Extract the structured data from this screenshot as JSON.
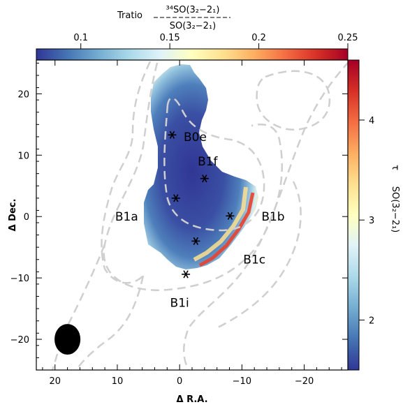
{
  "chart_data": {
    "type": "heatmap",
    "title": "",
    "top_colorbar": {
      "label": "Tratio",
      "ratio_numerator": "³⁴SO(3₂−2₁)",
      "ratio_denominator": "SO(3₂−2₁)",
      "range": [
        0.075,
        0.25
      ],
      "ticks": [
        0.1,
        0.15,
        0.2,
        0.25
      ],
      "tick_labels": [
        "0.1",
        "0.15",
        "0.2",
        "0.25"
      ]
    },
    "right_colorbar": {
      "symbol": "τ",
      "label": "SO(3₂−2₁)",
      "range": [
        1.5,
        4.6
      ],
      "ticks": [
        2,
        3,
        4
      ],
      "tick_labels": [
        "2",
        "3",
        "4"
      ]
    },
    "colormap": [
      "#313695",
      "#4575b4",
      "#74add1",
      "#abd9e9",
      "#e0f3f8",
      "#ffffbf",
      "#fee090",
      "#fdae61",
      "#f46d43",
      "#d73027",
      "#a50026"
    ],
    "xlabel": "Δ R.A.",
    "ylabel": "Δ Dec.",
    "xlim": [
      23,
      -27
    ],
    "ylim": [
      -25,
      25.5
    ],
    "xticks": [
      20,
      10,
      0,
      -10,
      -20
    ],
    "xtick_labels": [
      "20",
      "10",
      "0",
      "−10",
      "−20"
    ],
    "yticks": [
      20,
      10,
      0,
      -10,
      -20
    ],
    "ytick_labels": [
      "20",
      "10",
      "0",
      "−10",
      "−20"
    ],
    "sources": [
      {
        "name": "B0e",
        "x": 1.2,
        "y": 13.3,
        "label_x": -2.5,
        "label_y": 13
      },
      {
        "name": "B1f",
        "x": -4.0,
        "y": 6.2,
        "label_x": -4.5,
        "label_y": 9
      },
      {
        "name": "B1a",
        "x": 0.6,
        "y": 3.0,
        "label_x": 8.5,
        "label_y": 0
      },
      {
        "name": "B1b",
        "x": -8.1,
        "y": 0.1,
        "label_x": -15,
        "label_y": 0
      },
      {
        "name": "B1c",
        "x": -2.6,
        "y": -4.0,
        "label_x": -12,
        "label_y": -7
      },
      {
        "name": "B1i",
        "x": -1.0,
        "y": -9.4,
        "label_x": 0,
        "label_y": -14
      }
    ],
    "beam": {
      "x": 18,
      "y": -20,
      "major": 4.8,
      "minor": 4.0
    },
    "ratio_map_extent": {
      "x": [
        -12,
        6.5
      ],
      "y": [
        -9.5,
        22.5
      ]
    }
  }
}
